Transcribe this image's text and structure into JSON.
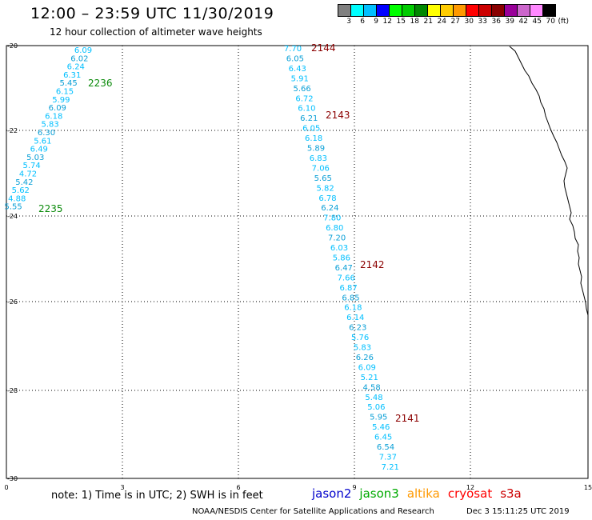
{
  "header": {
    "title": "12:00 – 23:59 UTC 11/30/2019",
    "subtitle": "12 hour collection of altimeter wave heights"
  },
  "legend": {
    "colors": [
      "#808080",
      "#00ffff",
      "#00bfff",
      "#0000ff",
      "#00ff00",
      "#00cc00",
      "#008800",
      "#ffff00",
      "#ffcc00",
      "#ff9900",
      "#ff0000",
      "#cc0000",
      "#880000",
      "#990099",
      "#cc66cc",
      "#ff88ff",
      "#000000"
    ],
    "labels": [
      "3",
      "6",
      "9",
      "12",
      "15",
      "18",
      "21",
      "24",
      "27",
      "30",
      "33",
      "36",
      "39",
      "42",
      "45",
      "70",
      "(ft)"
    ]
  },
  "axes": {
    "y_ticks": [
      "-20",
      "-22",
      "-24",
      "-26",
      "-28",
      "-30"
    ],
    "x_ticks": [
      "0",
      "3",
      "6",
      "9",
      "12",
      "15"
    ]
  },
  "passes": {
    "left_track": {
      "values": [
        "6.09",
        "6.02",
        "6.24",
        "6.31",
        "5.45",
        "6.15",
        "5.99",
        "6.09",
        "6.18",
        "5.83",
        "6.30",
        "5.61",
        "6.49",
        "5.03",
        "5.74",
        "4.72",
        "5.42",
        "5.62",
        "4.88",
        "5.55"
      ],
      "labels": [
        {
          "text": "2236",
          "color": "#0a8a0a"
        },
        {
          "text": "2235",
          "color": "#0a8a0a"
        }
      ]
    },
    "right_track": {
      "values": [
        "7.70",
        "6.05",
        "6.43",
        "5.91",
        "5.66",
        "6.72",
        "6.10",
        "6.21",
        "6.05",
        "6.18",
        "5.89",
        "6.83",
        "7.06",
        "5.65",
        "5.82",
        "6.78",
        "6.24",
        "7.80",
        "6.80",
        "7.20",
        "6.03",
        "5.86",
        "6.47",
        "7.66",
        "6.87",
        "6.85",
        "6.18",
        "6.14",
        "6.23",
        "5.76",
        "5.83",
        "6.26",
        "6.09",
        "5.21",
        "4.58",
        "5.48",
        "5.06",
        "5.95",
        "5.46",
        "6.45",
        "6.54",
        "7.37",
        "7.21"
      ],
      "labels": [
        {
          "text": "2144",
          "color": "#8b0000"
        },
        {
          "text": "2143",
          "color": "#8b0000"
        },
        {
          "text": "2142",
          "color": "#8b0000"
        },
        {
          "text": "2141",
          "color": "#8b0000"
        }
      ]
    }
  },
  "footer": {
    "note": "note: 1) Time is in UTC; 2) SWH is in feet",
    "satellites": [
      {
        "name": "jason2",
        "color": "#0000cc"
      },
      {
        "name": "jason3",
        "color": "#00aa00"
      },
      {
        "name": "altika",
        "color": "#ff9900"
      },
      {
        "name": "cryosat",
        "color": "#ff0000"
      },
      {
        "name": "s3a",
        "color": "#cc0000"
      }
    ],
    "credit": "NOAA/NESDIS Center for Satellite Applications and Research",
    "timestamp": "Dec  3 15:11:25 UTC 2019"
  }
}
